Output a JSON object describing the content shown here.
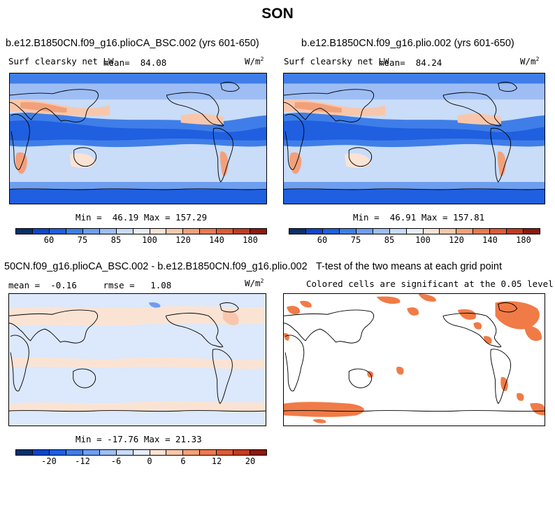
{
  "figure_title": "SON",
  "panels": [
    {
      "id": "upper-left",
      "title": "b.e12.B1850CN.f09_g16.plioCA_BSC.002 (yrs 601-650)",
      "variable": "Surf clearsky net LW",
      "mean_label": "mean=",
      "mean_value": "84.08",
      "units": "W/m",
      "units_exp": "2",
      "min_label": "Min =",
      "min_value": "46.19",
      "max_label": "Max =",
      "max_value": "157.29"
    },
    {
      "id": "upper-right",
      "title": "b.e12.B1850CN.f09_g16.plio.002 (yrs 601-650)",
      "variable": "Surf clearsky net LW",
      "mean_label": "mean=",
      "mean_value": "84.24",
      "units": "W/m",
      "units_exp": "2",
      "min_label": "Min =",
      "min_value": "46.91",
      "max_label": "Max =",
      "max_value": "157.81"
    },
    {
      "id": "lower-left",
      "title": "50CN.f09_g16.plioCA_BSC.002 - b.e12.B1850CN.f09_g16.plio.002",
      "mean_label": "mean =",
      "mean_value": "-0.16",
      "rmse_label": "rmse =",
      "rmse_value": "1.08",
      "units": "W/m",
      "units_exp": "2",
      "min_label": "Min =",
      "min_value": "-17.76",
      "max_label": "Max =",
      "max_value": "21.33"
    },
    {
      "id": "lower-right",
      "title": "T-test of the two means at each grid point",
      "subtitle": "Colored cells are significant at the 0.05 level"
    }
  ],
  "colorbars": {
    "field": {
      "colors": [
        "#08306b",
        "#0d47c9",
        "#1f5fe0",
        "#3f7ee8",
        "#6d9ef0",
        "#9dbdf4",
        "#c7dbf8",
        "#e6eefb",
        "#fbe3d4",
        "#f8c7ab",
        "#f2a07a",
        "#ea7a50",
        "#de5a35",
        "#c33b20",
        "#8b1a0e"
      ],
      "tick_labels": [
        "60",
        "75",
        "85",
        "100",
        "120",
        "140",
        "180"
      ]
    },
    "diff": {
      "colors": [
        "#08306b",
        "#0d47c9",
        "#1f5fe0",
        "#3f7ee8",
        "#6d9ef0",
        "#9dbdf4",
        "#c7dbf8",
        "#e6eefb",
        "#fbe3d4",
        "#f8c7ab",
        "#f2a07a",
        "#ea7a50",
        "#de5a35",
        "#c33b20",
        "#8b1a0e"
      ],
      "tick_labels": [
        "-20",
        "-12",
        "-6",
        "0",
        "6",
        "12",
        "20"
      ]
    }
  },
  "significance_color": "#f07b47"
}
